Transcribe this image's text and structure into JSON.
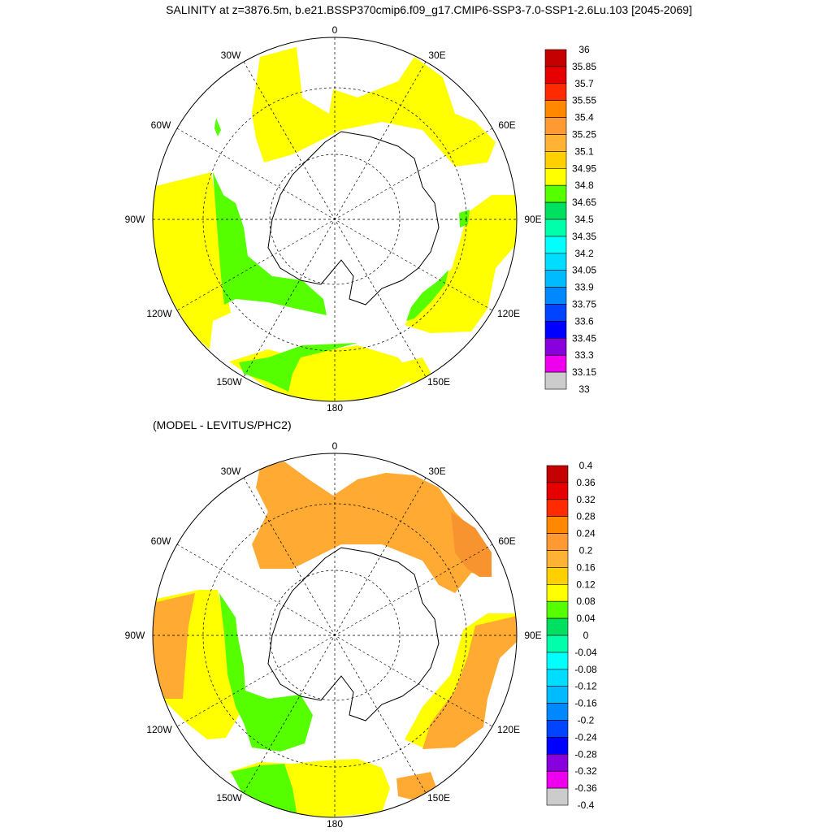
{
  "title": "SALINITY at z=3876.5m, b.e21.BSSP370cmip6.f09_g17.CMIP6-SSP3-7.0-SSP1-2.6Lu.103 [2045-2069]",
  "subtitle": "(MODEL - LEVITUS/PHC2)",
  "lon_labels": [
    "0",
    "30E",
    "60E",
    "90E",
    "120E",
    "150E",
    "180",
    "150W",
    "120W",
    "90W",
    "60W",
    "30W"
  ],
  "colors": {
    "land_outline": "#000000",
    "grid": "#000000",
    "yellow": "#ffff00",
    "green": "#55ff00",
    "orange_light": "#ffaa33",
    "orange": "#f89430"
  },
  "colorbar_top": {
    "labels": [
      "36",
      "35.85",
      "35.7",
      "35.55",
      "35.4",
      "35.25",
      "35.1",
      "34.95",
      "34.8",
      "34.65",
      "34.5",
      "34.35",
      "34.2",
      "34.05",
      "33.9",
      "33.75",
      "33.6",
      "33.45",
      "33.3",
      "33.15",
      "33"
    ],
    "colors": [
      "#c40000",
      "#e60000",
      "#ff2a00",
      "#ff8800",
      "#ff9a33",
      "#ffb233",
      "#ffd000",
      "#ffff00",
      "#55ff00",
      "#00e060",
      "#00ffaa",
      "#00ffff",
      "#00ddff",
      "#00bbff",
      "#0088ff",
      "#0044ff",
      "#0000ff",
      "#8800dd",
      "#ee00ee",
      "#cccccc",
      "#707070"
    ]
  },
  "colorbar_bottom": {
    "labels": [
      "0.4",
      "0.36",
      "0.32",
      "0.28",
      "0.24",
      "0.2",
      "0.16",
      "0.12",
      "0.08",
      "0.04",
      "0",
      "-0.04",
      "-0.08",
      "-0.12",
      "-0.16",
      "-0.2",
      "-0.24",
      "-0.28",
      "-0.32",
      "-0.36",
      "-0.4"
    ],
    "colors": [
      "#c40000",
      "#e60000",
      "#ff2a00",
      "#ff8800",
      "#ff9a33",
      "#ffb233",
      "#ffd000",
      "#ffff00",
      "#55ff00",
      "#00e060",
      "#00ffaa",
      "#00ffff",
      "#00ddff",
      "#00bbff",
      "#0088ff",
      "#0044ff",
      "#0000ff",
      "#8800dd",
      "#ee00ee",
      "#cccccc",
      "#707070"
    ]
  }
}
